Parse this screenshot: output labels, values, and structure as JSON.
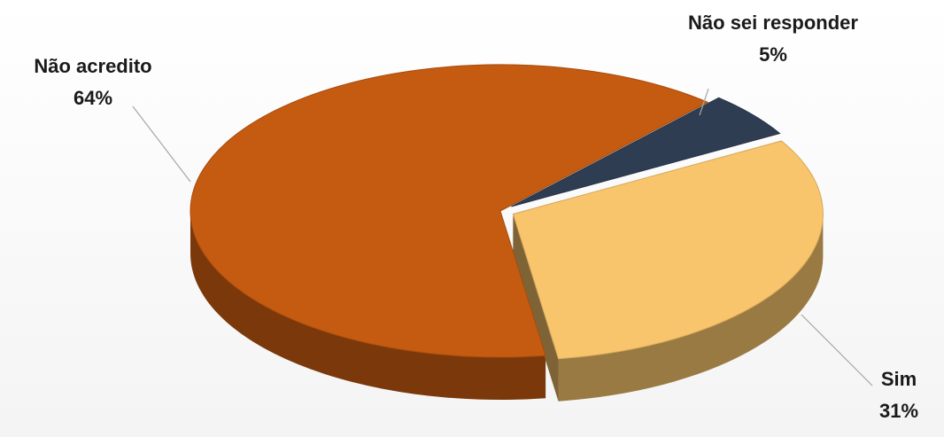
{
  "chart_data": {
    "type": "pie",
    "style": "3d-exploded",
    "slices": [
      {
        "label": "Não acredito",
        "value": 64,
        "value_label": "64%",
        "color": "#C55A11"
      },
      {
        "label": "Não sei responder",
        "value": 5,
        "value_label": "5%",
        "color": "#2E3D52"
      },
      {
        "label": "Sim",
        "value": 31,
        "value_label": "31%",
        "color": "#F9C56C"
      }
    ],
    "legend": "none",
    "data_labels": "outside with leader lines"
  }
}
